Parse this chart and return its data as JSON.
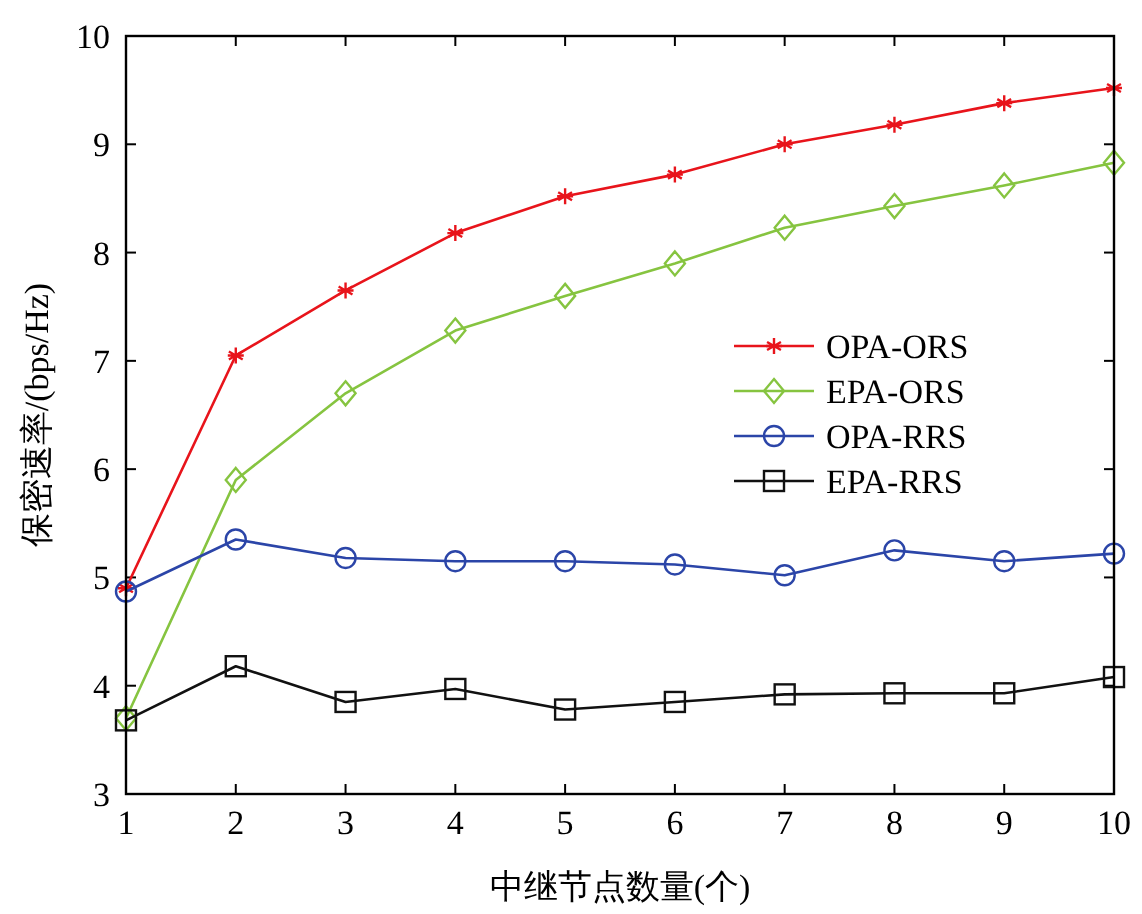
{
  "chart_data": {
    "type": "line",
    "xlabel": "中继节点数量(个)",
    "ylabel": "保密速率/(bps/Hz)",
    "x": [
      1,
      2,
      3,
      4,
      5,
      6,
      7,
      8,
      9,
      10
    ],
    "xlim": [
      1,
      10
    ],
    "xticks": [
      1,
      2,
      3,
      4,
      5,
      6,
      7,
      8,
      9,
      10
    ],
    "ylim": [
      3,
      10
    ],
    "yticks": [
      3,
      4,
      5,
      6,
      7,
      8,
      9,
      10
    ],
    "legend": "right",
    "grid": false,
    "line_style": "solid",
    "series": [
      {
        "name": "OPA-ORS",
        "color": "#e8141b",
        "marker": "cross",
        "values": [
          4.9,
          7.05,
          7.65,
          8.18,
          8.52,
          8.72,
          9.0,
          9.18,
          9.38,
          9.52
        ]
      },
      {
        "name": "EPA-ORS",
        "color": "#86c440",
        "marker": "diamond",
        "values": [
          3.7,
          5.9,
          6.7,
          7.28,
          7.6,
          7.9,
          8.23,
          8.43,
          8.62,
          8.83
        ]
      },
      {
        "name": "OPA-RRS",
        "color": "#2b45a8",
        "marker": "circle",
        "values": [
          4.87,
          5.35,
          5.18,
          5.15,
          5.15,
          5.12,
          5.02,
          5.25,
          5.15,
          5.22
        ]
      },
      {
        "name": "EPA-RRS",
        "color": "#111111",
        "marker": "square",
        "values": [
          3.68,
          4.18,
          3.85,
          3.97,
          3.78,
          3.85,
          3.92,
          3.93,
          3.93,
          4.08
        ]
      }
    ]
  }
}
